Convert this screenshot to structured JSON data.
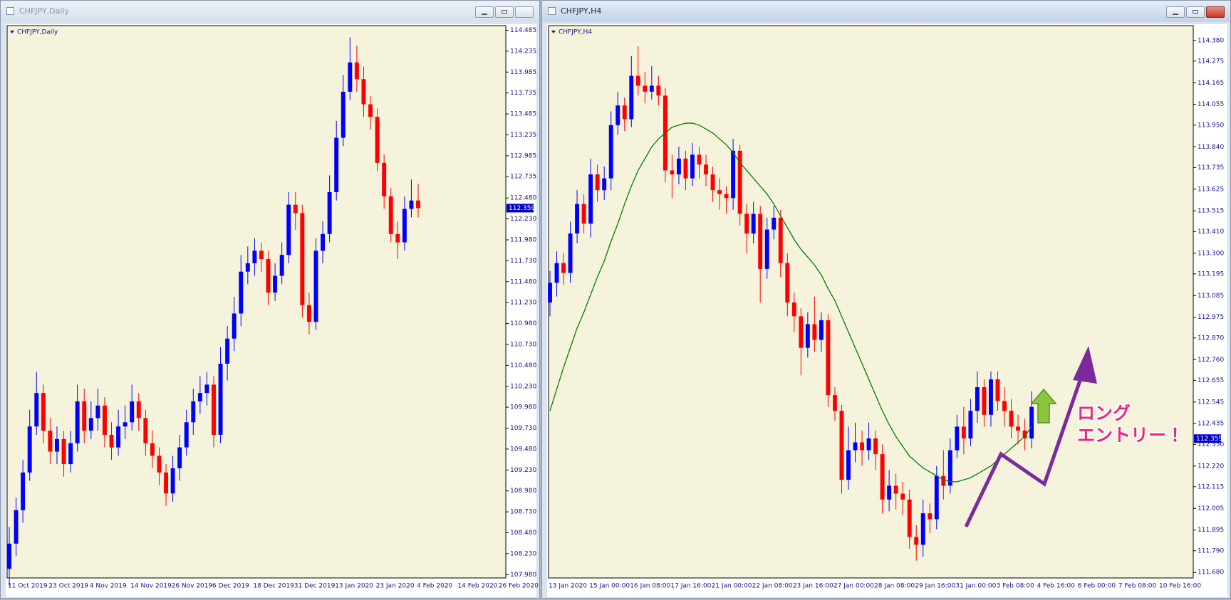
{
  "windows": [
    {
      "title": "CHFJPY,Daily"
    },
    {
      "title": "CHFJPY,H4"
    }
  ],
  "chart_data": [
    {
      "type": "candlestick",
      "title": "CHFJPY,Daily",
      "categories": [
        "11 Oct 2019",
        null,
        null,
        null,
        null,
        null,
        "23 Oct 2019",
        null,
        null,
        null,
        null,
        null,
        "4 Nov 2019",
        null,
        null,
        null,
        null,
        null,
        "14 Nov 2019",
        null,
        null,
        null,
        null,
        null,
        "26 Nov 2019",
        null,
        null,
        null,
        null,
        null,
        "6 Dec 2019",
        null,
        null,
        null,
        null,
        null,
        "18 Dec 2019",
        null,
        null,
        null,
        null,
        null,
        "31 Dec 2019",
        null,
        null,
        null,
        null,
        null,
        "13 Jan 2020",
        null,
        null,
        null,
        null,
        null,
        "23 Jan 2020",
        null,
        null,
        null,
        null,
        null,
        "4 Feb 2020",
        null,
        null,
        null,
        null,
        null,
        "14 Feb 2020",
        null,
        null,
        null,
        null,
        null,
        "26 Feb 2020"
      ],
      "open": [
        108.05,
        108.35,
        108.75,
        109.2,
        109.75,
        110.15,
        109.7,
        109.45,
        109.6,
        109.3,
        109.55,
        110.05,
        109.7,
        109.85,
        110.0,
        109.65,
        109.5,
        109.75,
        109.8,
        110.05,
        109.85,
        109.55,
        109.4,
        109.2,
        108.95,
        109.25,
        109.5,
        109.8,
        110.05,
        110.15,
        110.25,
        109.65,
        110.5,
        110.8,
        111.1,
        111.6,
        111.7,
        111.85,
        111.75,
        111.35,
        111.55,
        111.8,
        112.4,
        112.3,
        111.2,
        111.0,
        111.85,
        112.05,
        112.55,
        113.2,
        113.75,
        114.1,
        113.9,
        113.6,
        113.45,
        112.9,
        112.5,
        112.05,
        111.95,
        112.35,
        112.45,
        null,
        null,
        null,
        null,
        null,
        null,
        null,
        null,
        null,
        null,
        null,
        null
      ],
      "high": [
        108.55,
        108.9,
        109.35,
        109.95,
        110.4,
        110.25,
        109.85,
        109.75,
        109.7,
        109.7,
        110.25,
        110.2,
        110.05,
        110.2,
        110.1,
        109.8,
        109.95,
        110.0,
        110.25,
        110.15,
        109.95,
        109.7,
        109.5,
        109.3,
        109.4,
        109.65,
        109.95,
        110.2,
        110.35,
        110.4,
        110.35,
        110.7,
        110.95,
        111.3,
        111.8,
        111.9,
        112.0,
        111.95,
        111.85,
        111.7,
        111.95,
        112.55,
        112.55,
        112.4,
        111.35,
        112.0,
        112.2,
        112.75,
        113.4,
        113.95,
        114.4,
        114.3,
        114.05,
        113.7,
        113.55,
        113.0,
        112.6,
        112.2,
        112.5,
        112.7,
        112.65,
        null,
        null,
        null,
        null,
        null,
        null,
        null,
        null,
        null,
        null,
        null,
        null
      ],
      "low": [
        107.85,
        108.2,
        108.6,
        109.1,
        109.65,
        109.55,
        109.3,
        109.3,
        109.15,
        109.2,
        109.45,
        109.55,
        109.6,
        109.7,
        109.5,
        109.35,
        109.4,
        109.6,
        109.7,
        109.7,
        109.4,
        109.25,
        109.05,
        108.8,
        108.85,
        109.1,
        109.4,
        109.65,
        109.9,
        110.0,
        109.5,
        109.55,
        110.3,
        110.65,
        110.95,
        111.45,
        111.55,
        111.6,
        111.2,
        111.25,
        111.45,
        111.7,
        112.1,
        111.05,
        110.85,
        110.9,
        111.7,
        111.95,
        112.45,
        113.1,
        113.65,
        113.75,
        113.45,
        113.3,
        112.8,
        112.35,
        111.95,
        111.75,
        111.85,
        112.25,
        112.25,
        null,
        null,
        null,
        null,
        null,
        null,
        null,
        null,
        null,
        null,
        null,
        null
      ],
      "close": [
        108.35,
        108.75,
        109.2,
        109.75,
        110.15,
        109.7,
        109.45,
        109.6,
        109.3,
        109.55,
        110.05,
        109.7,
        109.85,
        110.0,
        109.65,
        109.5,
        109.75,
        109.8,
        110.05,
        109.85,
        109.55,
        109.4,
        109.2,
        108.95,
        109.25,
        109.5,
        109.8,
        110.05,
        110.15,
        110.25,
        109.65,
        110.5,
        110.8,
        111.1,
        111.6,
        111.7,
        111.85,
        111.75,
        111.35,
        111.55,
        111.8,
        112.4,
        112.3,
        111.2,
        111.0,
        111.85,
        112.05,
        112.55,
        113.2,
        113.75,
        114.1,
        113.9,
        113.6,
        113.45,
        112.9,
        112.5,
        112.05,
        111.95,
        112.35,
        112.45,
        112.359,
        null,
        null,
        null,
        null,
        null,
        null,
        null,
        null,
        null,
        null,
        null,
        null
      ],
      "up_color": "#0000ff",
      "down_color": "#ff0000",
      "ylim": [
        107.94,
        114.54
      ],
      "yticks": [
        114.485,
        114.235,
        113.985,
        113.735,
        113.485,
        113.235,
        112.985,
        112.735,
        {
          "value": 112.48,
          "label": "112.480"
        },
        {
          "value": 112.23,
          "label": "112.230"
        },
        {
          "value": 111.98,
          "label": "111.980"
        },
        {
          "value": 111.73,
          "label": "111.730"
        },
        {
          "value": 111.48,
          "label": "111.480"
        },
        {
          "value": 111.23,
          "label": "111.230"
        },
        {
          "value": 110.98,
          "label": "110.980"
        },
        {
          "value": 110.73,
          "label": "110.730"
        },
        {
          "value": 110.48,
          "label": "110.480"
        },
        {
          "value": 110.23,
          "label": "110.230"
        },
        {
          "value": 109.98,
          "label": "109.980"
        },
        {
          "value": 109.73,
          "label": "109.730"
        },
        {
          "value": 109.48,
          "label": "109.480"
        },
        {
          "value": 109.23,
          "label": "109.230"
        },
        {
          "value": 108.98,
          "label": "108.980"
        },
        {
          "value": 108.73,
          "label": "108.730"
        },
        {
          "value": 108.48,
          "label": "108.480"
        },
        {
          "value": 108.23,
          "label": "108.230"
        },
        {
          "value": 107.98,
          "label": "107.980"
        }
      ],
      "current_price": 112.359,
      "current_price_color": "#0000cc"
    },
    {
      "type": "candlestick",
      "title": "CHFJPY,H4",
      "categories": [
        "13 Jan 2020",
        null,
        null,
        null,
        null,
        null,
        "15 Jan 00:00",
        null,
        null,
        null,
        null,
        null,
        "16 Jan 08:00",
        null,
        null,
        null,
        null,
        null,
        "17 Jan 16:00",
        null,
        null,
        null,
        null,
        null,
        "21 Jan 00:00",
        null,
        null,
        null,
        null,
        null,
        "22 Jan 08:00",
        null,
        null,
        null,
        null,
        null,
        "23 Jan 16:00",
        null,
        null,
        null,
        null,
        null,
        "27 Jan 00:00",
        null,
        null,
        null,
        null,
        null,
        "28 Jan 08:00",
        null,
        null,
        null,
        null,
        null,
        "29 Jan 16:00",
        null,
        null,
        null,
        null,
        null,
        "31 Jan 00:00",
        null,
        null,
        null,
        null,
        null,
        "3 Feb 08:00",
        null,
        null,
        null,
        null,
        null,
        "4 Feb 16:00",
        null,
        null,
        null,
        null,
        null,
        "6 Feb 00:00",
        null,
        null,
        null,
        null,
        null,
        "7 Feb 08:00",
        null,
        null,
        null,
        null,
        null,
        "10 Feb 16:00"
      ],
      "open": [
        113.05,
        113.15,
        113.25,
        113.2,
        113.4,
        113.55,
        113.45,
        113.7,
        113.62,
        113.68,
        113.95,
        114.05,
        113.98,
        114.2,
        114.15,
        114.12,
        114.15,
        114.1,
        113.72,
        113.7,
        113.78,
        113.68,
        113.8,
        113.75,
        113.7,
        113.62,
        113.6,
        113.58,
        113.82,
        113.5,
        113.4,
        113.5,
        113.22,
        113.42,
        113.48,
        113.25,
        113.05,
        112.98,
        112.82,
        112.94,
        112.86,
        112.96,
        112.58,
        112.5,
        112.15,
        112.3,
        112.34,
        112.3,
        112.36,
        112.28,
        112.05,
        112.12,
        112.08,
        112.05,
        111.86,
        111.82,
        111.98,
        111.95,
        112.17,
        112.12,
        112.3,
        112.42,
        112.36,
        112.5,
        112.62,
        112.48,
        112.66,
        112.55,
        112.5,
        112.42,
        112.4,
        112.36,
        null,
        null,
        null,
        null,
        null,
        null,
        null,
        null,
        null,
        null,
        null,
        null,
        null,
        null,
        null,
        null,
        null,
        null,
        null
      ],
      "high": [
        113.21,
        113.31,
        113.3,
        113.46,
        113.62,
        113.6,
        113.78,
        113.75,
        113.74,
        114.02,
        114.12,
        114.09,
        114.3,
        114.35,
        114.22,
        114.25,
        114.2,
        114.14,
        113.8,
        113.84,
        113.82,
        113.86,
        113.84,
        113.8,
        113.74,
        113.68,
        113.64,
        113.88,
        113.85,
        113.55,
        113.56,
        113.54,
        113.48,
        113.54,
        113.52,
        113.3,
        113.1,
        113.02,
        113.0,
        113.08,
        113.0,
        112.99,
        112.62,
        112.53,
        112.42,
        112.44,
        112.4,
        112.44,
        112.4,
        112.33,
        112.2,
        112.18,
        112.14,
        112.1,
        111.92,
        112.05,
        112.03,
        112.22,
        112.3,
        112.36,
        112.48,
        112.52,
        112.56,
        112.7,
        112.66,
        112.7,
        112.7,
        112.62,
        112.56,
        112.48,
        112.46,
        112.6,
        null,
        null,
        null,
        null,
        null,
        null,
        null,
        null,
        null,
        null,
        null,
        null,
        null,
        null,
        null,
        null,
        null,
        null,
        null
      ],
      "low": [
        112.98,
        113.08,
        113.14,
        113.15,
        113.35,
        113.4,
        113.38,
        113.56,
        113.57,
        113.62,
        113.9,
        113.92,
        113.94,
        114.1,
        114.06,
        114.08,
        114.05,
        113.66,
        113.58,
        113.65,
        113.62,
        113.64,
        113.68,
        113.64,
        113.56,
        113.52,
        113.5,
        113.52,
        113.44,
        113.3,
        113.35,
        113.05,
        113.17,
        113.37,
        113.18,
        112.98,
        112.9,
        112.68,
        112.77,
        112.8,
        112.8,
        112.52,
        112.45,
        112.08,
        112.1,
        112.24,
        112.22,
        112.25,
        112.2,
        111.98,
        111.99,
        112.0,
        111.97,
        111.8,
        111.74,
        111.76,
        111.88,
        111.9,
        112.05,
        112.08,
        112.26,
        112.28,
        112.32,
        112.44,
        112.42,
        112.42,
        112.5,
        112.42,
        112.36,
        112.33,
        112.3,
        112.31,
        null,
        null,
        null,
        null,
        null,
        null,
        null,
        null,
        null,
        null,
        null,
        null,
        null,
        null,
        null,
        null,
        null,
        null,
        null
      ],
      "close": [
        113.15,
        113.25,
        113.2,
        113.4,
        113.55,
        113.45,
        113.7,
        113.62,
        113.68,
        113.95,
        114.05,
        113.98,
        114.2,
        114.15,
        114.12,
        114.15,
        114.1,
        113.72,
        113.7,
        113.78,
        113.68,
        113.8,
        113.75,
        113.7,
        113.62,
        113.6,
        113.58,
        113.82,
        113.5,
        113.4,
        113.5,
        113.22,
        113.42,
        113.48,
        113.25,
        113.05,
        112.98,
        112.82,
        112.94,
        112.86,
        112.96,
        112.58,
        112.5,
        112.15,
        112.3,
        112.34,
        112.3,
        112.36,
        112.28,
        112.05,
        112.12,
        112.08,
        112.05,
        111.86,
        111.82,
        111.98,
        111.95,
        112.17,
        112.12,
        112.3,
        112.42,
        112.36,
        112.5,
        112.62,
        112.48,
        112.66,
        112.55,
        112.5,
        112.42,
        112.4,
        112.36,
        112.52,
        null,
        null,
        null,
        null,
        null,
        null,
        null,
        null,
        null,
        null,
        null,
        null,
        null,
        null,
        null,
        null,
        null,
        null,
        null
      ],
      "series": [
        {
          "color": "#008000",
          "values": [
            112.5,
            112.61,
            112.72,
            112.82,
            112.92,
            113.0,
            113.09,
            113.18,
            113.26,
            113.36,
            113.45,
            113.55,
            113.64,
            113.72,
            113.78,
            113.84,
            113.88,
            113.91,
            113.94,
            113.95,
            113.96,
            113.96,
            113.95,
            113.93,
            113.91,
            113.88,
            113.85,
            113.81,
            113.76,
            113.72,
            113.68,
            113.64,
            113.6,
            113.55,
            113.49,
            113.43,
            113.37,
            113.32,
            113.28,
            113.24,
            113.19,
            113.12,
            113.06,
            112.98,
            112.9,
            112.82,
            112.74,
            112.66,
            112.58,
            112.5,
            112.43,
            112.37,
            112.32,
            112.27,
            112.24,
            112.21,
            112.19,
            112.17,
            112.15,
            112.14,
            112.14,
            112.15,
            112.16,
            112.18,
            112.2,
            112.22,
            112.25,
            112.28,
            112.31,
            112.34,
            112.37,
            112.42,
            null,
            null,
            null,
            null,
            null,
            null,
            null,
            null,
            null,
            null,
            null,
            null,
            null,
            null,
            null,
            null,
            null,
            null,
            null
          ]
        }
      ],
      "up_color": "#0000ff",
      "down_color": "#ff0000",
      "ylim": [
        111.652,
        114.455
      ],
      "yticks": [
        {
          "value": 114.38,
          "label": "114.380"
        },
        114.275,
        114.165,
        114.055,
        {
          "value": 113.95,
          "label": "113.950"
        },
        {
          "value": 113.84,
          "label": "113.840"
        },
        113.735,
        113.625,
        113.515,
        {
          "value": 113.41,
          "label": "113.410"
        },
        {
          "value": 113.3,
          "label": "113.300"
        },
        113.195,
        113.085,
        112.975,
        {
          "value": 112.87,
          "label": "112.870"
        },
        {
          "value": 112.76,
          "label": "112.760"
        },
        112.655,
        112.545,
        112.435,
        {
          "value": 112.33,
          "label": "112.330"
        },
        {
          "value": 112.22,
          "label": "112.220"
        },
        112.115,
        112.005,
        111.895,
        {
          "value": 111.79,
          "label": "111.790"
        },
        {
          "value": 111.68,
          "label": "111.680"
        }
      ],
      "current_price": 112.359,
      "current_price_color": "#0000cc",
      "annotation": [
        "ロング",
        "エントリー！"
      ]
    }
  ]
}
